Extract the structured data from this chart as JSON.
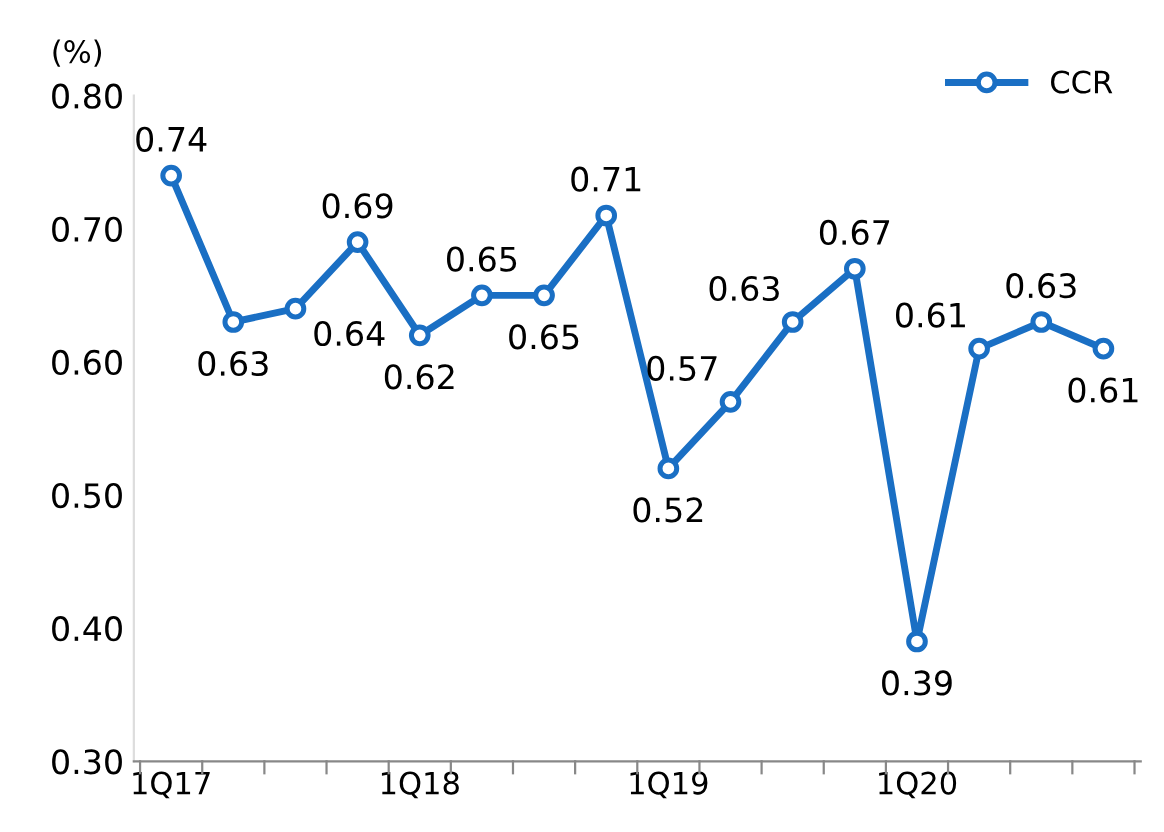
{
  "chart_data": {
    "type": "line",
    "ylabel": "(%)",
    "categories": [
      "1Q17",
      null,
      null,
      null,
      "1Q18",
      null,
      null,
      null,
      "1Q19",
      null,
      null,
      null,
      "1Q20",
      null,
      null,
      null
    ],
    "series": [
      {
        "name": "CCR",
        "color": "#1a6fc4",
        "values": [
          0.74,
          0.63,
          0.64,
          0.69,
          0.62,
          0.65,
          0.65,
          0.71,
          0.52,
          0.57,
          0.63,
          0.67,
          0.39,
          0.61,
          0.63,
          0.61
        ]
      }
    ],
    "ylim": [
      0.3,
      0.8
    ],
    "yticks": [
      {
        "value": 0.3,
        "label": "0.30"
      },
      {
        "value": 0.4,
        "label": "0.40"
      },
      {
        "value": 0.5,
        "label": "0.50"
      },
      {
        "value": 0.6,
        "label": "0.60"
      },
      {
        "value": 0.7,
        "label": "0.70"
      },
      {
        "value": 0.8,
        "label": "0.80"
      }
    ],
    "data_labels": true,
    "legend": "top right",
    "marker": "circle",
    "line_style": "solid",
    "grid": false
  }
}
